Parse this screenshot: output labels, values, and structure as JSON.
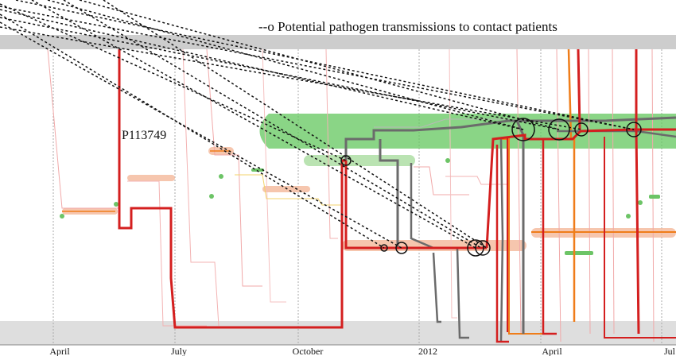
{
  "chart_data": {
    "type": "line",
    "legend_text": "--o  Potential pathogen transmissions to contact patients",
    "patient_label": "P113749",
    "x_tick_labels": [
      "April",
      "July",
      "October",
      "2012",
      "April",
      "Jul"
    ],
    "grid": true,
    "colors": {
      "highlight": "#63c75e",
      "index_path": "#d41f1f",
      "contact_path": "#6b6b6b",
      "orange_path": "#ef7d1a",
      "band": "#cfcfcf"
    },
    "transmission_count": 13
  }
}
